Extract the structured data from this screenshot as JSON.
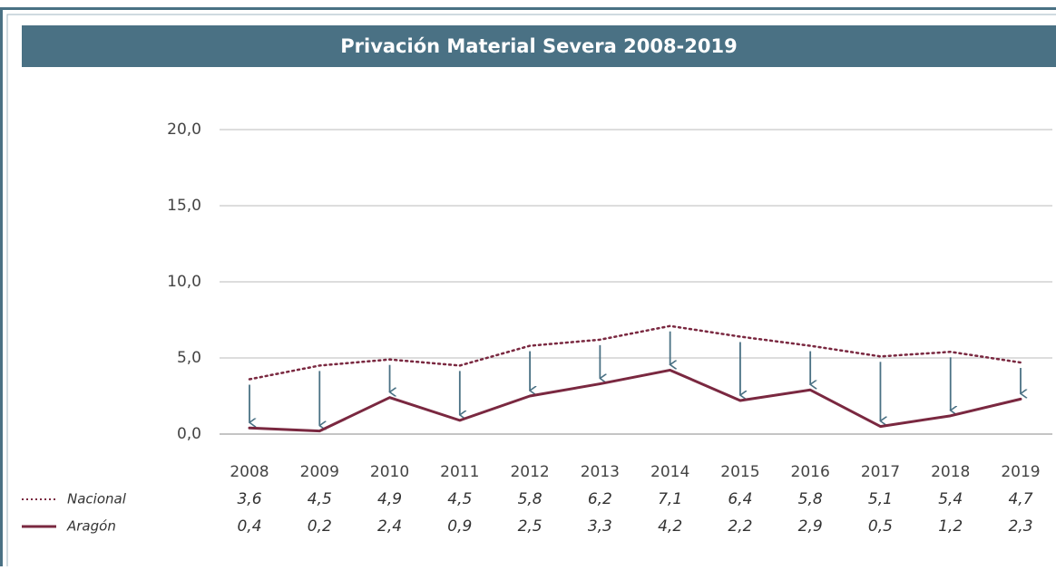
{
  "chart_data": {
    "type": "line",
    "title": "Privación Material Severa 2008-2019",
    "categories": [
      "2008",
      "2009",
      "2010",
      "2011",
      "2012",
      "2013",
      "2014",
      "2015",
      "2016",
      "2017",
      "2018",
      "2019"
    ],
    "series": [
      {
        "name": "Nacional",
        "color": "#7a2840",
        "style": "dotted",
        "values": [
          3.6,
          4.5,
          4.9,
          4.5,
          5.8,
          6.2,
          7.1,
          6.4,
          5.8,
          5.1,
          5.4,
          4.7
        ],
        "value_labels": [
          "3,6",
          "4,5",
          "4,9",
          "4,5",
          "5,8",
          "6,2",
          "7,1",
          "6,4",
          "5,8",
          "5,1",
          "5,4",
          "4,7"
        ]
      },
      {
        "name": "Aragón",
        "color": "#7a2840",
        "style": "solid",
        "values": [
          0.4,
          0.2,
          2.4,
          0.9,
          2.5,
          3.3,
          4.2,
          2.2,
          2.9,
          0.5,
          1.2,
          2.3
        ],
        "value_labels": [
          "0,4",
          "0,2",
          "2,4",
          "0,9",
          "2,5",
          "3,3",
          "4,2",
          "2,2",
          "2,9",
          "0,5",
          "1,2",
          "2,3"
        ]
      }
    ],
    "ylim": [
      0,
      20
    ],
    "yticks": [
      {
        "value": 0,
        "label": "0,0"
      },
      {
        "value": 5,
        "label": "5,0"
      },
      {
        "value": 10,
        "label": "10,0"
      },
      {
        "value": 15,
        "label": "15,0"
      },
      {
        "value": 20,
        "label": "20,0"
      }
    ],
    "grid": true,
    "arrow_color": "#4a7184"
  }
}
